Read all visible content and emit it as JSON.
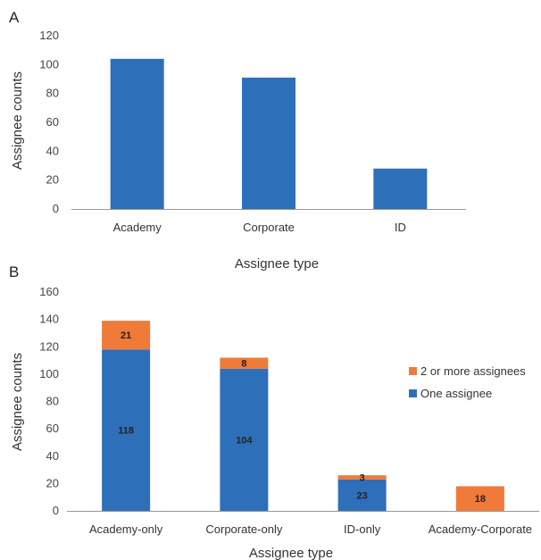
{
  "chart_data": [
    {
      "panel_label": "A",
      "type": "bar",
      "categories": [
        "Academy",
        "Corporate",
        "ID"
      ],
      "values": [
        104,
        91,
        28
      ],
      "xlabel": "Assignee type",
      "ylabel": "Assignee counts",
      "ylim": [
        0,
        120
      ],
      "yticks": [
        "0",
        "20",
        "40",
        "60",
        "80",
        "100",
        "120"
      ],
      "grid": false,
      "color": "#2E6FBA"
    },
    {
      "panel_label": "B",
      "type": "bar",
      "stacked": true,
      "categories": [
        "Academy-only",
        "Corporate-only",
        "ID-only",
        "Academy-Corporate"
      ],
      "series": [
        {
          "name": "One assignee",
          "values": [
            118,
            104,
            23,
            0
          ],
          "labels": [
            "118",
            "104",
            "23",
            ""
          ],
          "color": "#2E6FBA"
        },
        {
          "name": "2 or more assignees",
          "values": [
            21,
            8,
            3,
            18
          ],
          "labels": [
            "21",
            "8",
            "3",
            "18"
          ],
          "color": "#F07A38"
        }
      ],
      "legend_order": [
        "2 or more assignees",
        "One assignee"
      ],
      "legend_position": "right",
      "xlabel": "Assignee type",
      "ylabel": "Assignee counts",
      "ylim": [
        0,
        160
      ],
      "yticks": [
        "0",
        "20",
        "40",
        "60",
        "80",
        "100",
        "120",
        "140",
        "160"
      ],
      "grid": false
    }
  ]
}
